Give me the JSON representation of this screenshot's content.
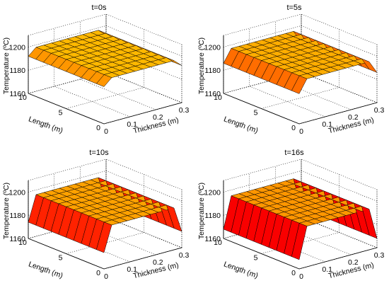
{
  "chart_data": [
    {
      "type": "surface3d",
      "title": "t=0s",
      "xlabel": "Thickness (m)",
      "ylabel": "Length (m)",
      "zlabel": "Temperature (ºC)",
      "xticks": [
        "0",
        "0.1",
        "0.2",
        "0.3"
      ],
      "yticks": [
        "0",
        "5",
        "10"
      ],
      "zticks": [
        "1160",
        "1180",
        "1200"
      ],
      "xlim": [
        0,
        0.3
      ],
      "ylim": [
        0,
        10
      ],
      "zlim": [
        1160,
        1210
      ],
      "thickness": [
        0,
        0.3
      ],
      "edge_temperature": [
        1192,
        1192
      ],
      "center_temperature": 1198,
      "colormap": "hot"
    },
    {
      "type": "surface3d",
      "title": "t=5s",
      "xlabel": "Thickness (m)",
      "ylabel": "Length (m)",
      "zlabel": "Temperature (ºC)",
      "xticks": [
        "0",
        "0.1",
        "0.2",
        "0.3"
      ],
      "yticks": [
        "0",
        "5",
        "10"
      ],
      "zticks": [
        "1160",
        "1180",
        "1200"
      ],
      "xlim": [
        0,
        0.3
      ],
      "ylim": [
        0,
        10
      ],
      "zlim": [
        1160,
        1210
      ],
      "thickness": [
        0,
        0.3
      ],
      "edge_temperature": [
        1186,
        1186
      ],
      "center_temperature": 1197,
      "colormap": "hot"
    },
    {
      "type": "surface3d",
      "title": "t=10s",
      "xlabel": "Thickness (m)",
      "ylabel": "Length (m)",
      "zlabel": "Temperature (ºC)",
      "xticks": [
        "0",
        "0.1",
        "0.2",
        "0.3"
      ],
      "yticks": [
        "0",
        "5",
        "10"
      ],
      "zticks": [
        "1160",
        "1180",
        "1200"
      ],
      "xlim": [
        0,
        0.3
      ],
      "ylim": [
        0,
        10
      ],
      "zlim": [
        1160,
        1210
      ],
      "thickness": [
        0,
        0.3
      ],
      "edge_temperature": [
        1174,
        1174
      ],
      "center_temperature": 1196,
      "colormap": "hot"
    },
    {
      "type": "surface3d",
      "title": "t=16s",
      "xlabel": "Thickness (m)",
      "ylabel": "Length (m)",
      "zlabel": "Temperature (ºC)",
      "xticks": [
        "0",
        "0.1",
        "0.2",
        "0.3"
      ],
      "yticks": [
        "0",
        "5",
        "10"
      ],
      "zticks": [
        "1160",
        "1180",
        "1200"
      ],
      "xlim": [
        0,
        0.3
      ],
      "ylim": [
        0,
        10
      ],
      "zlim": [
        1160,
        1210
      ],
      "thickness": [
        0,
        0.3
      ],
      "edge_temperature": [
        1168,
        1168
      ],
      "center_temperature": 1195,
      "colormap": "hot"
    }
  ]
}
